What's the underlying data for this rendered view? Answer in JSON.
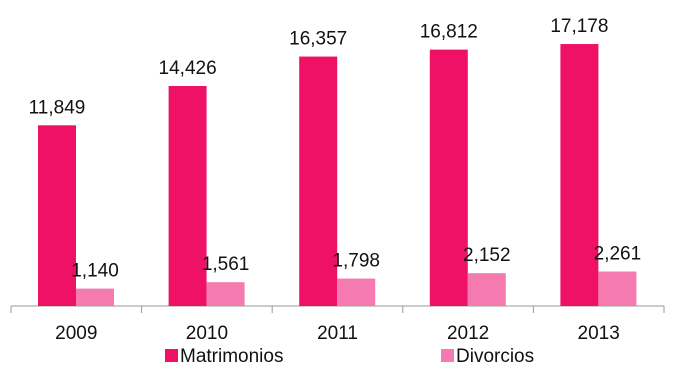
{
  "chart_data": {
    "type": "bar",
    "title": "",
    "xlabel": "",
    "ylabel": "",
    "categories": [
      "2009",
      "2010",
      "2011",
      "2012",
      "2013"
    ],
    "value_labels": {
      "Matrimonios": [
        "11,849",
        "14,426",
        "16,357",
        "16,812",
        "17,178"
      ],
      "Divorcios": [
        "1,140",
        "1,561",
        "1,798",
        "2,152",
        "2,261"
      ]
    },
    "series": [
      {
        "name": "Matrimonios",
        "values": [
          11849,
          14426,
          16357,
          16812,
          17178
        ],
        "color": "#ee1166"
      },
      {
        "name": "Divorcios",
        "values": [
          1140,
          1561,
          1798,
          2152,
          2261
        ],
        "color": "#f47ab0"
      }
    ],
    "ylim": [
      0,
      20000
    ],
    "grid": false,
    "legend_position": "bottom",
    "axis_color": "#999999"
  }
}
